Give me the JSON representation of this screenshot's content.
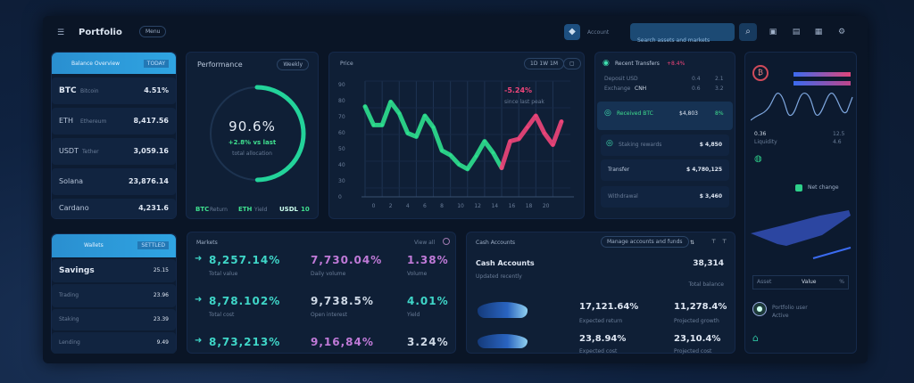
{
  "header": {
    "title": "Portfolio",
    "badge": "Menu",
    "user": "Account",
    "search_placeholder": "Search assets and markets",
    "icons": [
      "menu-icon",
      "logo-icon",
      "search-icon",
      "grid-icon",
      "wallet-icon",
      "bell-icon",
      "settings-icon"
    ]
  },
  "accounts": {
    "title": "Balance Overview",
    "tag": "TODAY",
    "rows": [
      {
        "label": "BTC",
        "sub": "Bitcoin",
        "value": "4.51%"
      },
      {
        "label": "ETH",
        "sub": "Ethereum",
        "value": "8,417.56"
      },
      {
        "label": "USDT",
        "sub": "Tether",
        "value": "3,059.16"
      },
      {
        "label": "Solana",
        "sub": "",
        "value": "23,876.14"
      },
      {
        "label": "Cardano",
        "sub": "",
        "value": "4,231.6"
      }
    ]
  },
  "gauge": {
    "title": "Performance",
    "button": "Weekly",
    "value": "90.6%",
    "fill": 0.906,
    "sub": "+2.8% vs last",
    "caption": "total allocation",
    "footer": [
      {
        "k": "BTC",
        "v": "Return"
      },
      {
        "k": "ETH",
        "v": "Yield"
      },
      {
        "k": "USDL",
        "v": "10"
      }
    ]
  },
  "chart": {
    "title": "Price",
    "button": "1D 1W 1M",
    "annotation": "-5.24%",
    "annotation_sub": "since last peak"
  },
  "chart_data": {
    "type": "line",
    "ylim": [
      0,
      100
    ],
    "yticks": [
      "90",
      "80",
      "70",
      "60",
      "50",
      "40",
      "30",
      "0"
    ],
    "xticks": [
      "0",
      "2",
      "4",
      "6",
      "8",
      "10",
      "12",
      "14",
      "16",
      "18",
      "20"
    ],
    "series": [
      {
        "color": "#2ee08f",
        "values": [
          [
            0,
            78
          ],
          [
            1,
            62
          ],
          [
            2,
            62
          ],
          [
            3,
            82
          ],
          [
            4,
            72
          ],
          [
            5,
            55
          ],
          [
            6,
            52
          ],
          [
            7,
            70
          ],
          [
            8,
            60
          ],
          [
            9,
            40
          ],
          [
            10,
            36
          ],
          [
            11,
            28
          ],
          [
            12,
            24
          ],
          [
            13,
            35
          ],
          [
            14,
            48
          ],
          [
            15,
            38
          ],
          [
            16,
            25
          ]
        ]
      },
      {
        "color": "#f0457a",
        "values": [
          [
            16,
            25
          ],
          [
            17,
            48
          ],
          [
            18,
            50
          ],
          [
            19,
            60
          ],
          [
            20,
            70
          ],
          [
            21,
            55
          ],
          [
            22,
            45
          ],
          [
            23,
            65
          ]
        ]
      }
    ]
  },
  "list": {
    "title": "Recent Transfers",
    "tag": "+8.4%",
    "table": {
      "rows": [
        [
          "Deposit USD",
          "0.4",
          "2.1"
        ],
        [
          "Exchange",
          "CNH",
          "0.6",
          "3.2"
        ]
      ]
    },
    "items": [
      {
        "label": "Received BTC",
        "value": "$4,803",
        "pct": "8%"
      },
      {
        "label": "Staking rewards",
        "value": "$ 4,850"
      },
      {
        "label": "Transfer",
        "value": "$ 4,780,125"
      },
      {
        "label": "Withdrawal",
        "value": "$ 3,460"
      }
    ]
  },
  "side": {
    "stats": [
      [
        "0.36",
        "12.5"
      ],
      [
        "Liquidity",
        "4.6"
      ]
    ],
    "legend": "Net change",
    "table": [
      "Asset",
      "Value",
      "%"
    ],
    "user": "Portfolio user",
    "user_sub": "Active"
  },
  "ledger": {
    "title": "Wallets",
    "tag": "SETTLED",
    "rows": [
      {
        "label": "Savings",
        "value": "25.15"
      },
      {
        "label": "Trading",
        "value": "23.96"
      },
      {
        "label": "Staking",
        "value": "23.39"
      },
      {
        "label": "Lending",
        "value": "9.49"
      }
    ]
  },
  "stats": {
    "title": "Markets",
    "link": "View all",
    "cells": [
      [
        "8,257.14%",
        "Total value",
        "7,730.04%",
        "Daily volume",
        "1.38%",
        "Volume"
      ],
      [
        "8,78.102%",
        "Total cost",
        "9,738.5%",
        "Open interest",
        "4.01%",
        "Yield"
      ],
      [
        "8,73,213%",
        "",
        "9,16,84%",
        "",
        "3.24%",
        ""
      ]
    ]
  },
  "assets": {
    "title": "Cash Accounts",
    "sub": "Updated recently",
    "button": "Manage accounts and funds",
    "value": "38,314",
    "note": "Total balance",
    "rows": [
      [
        "17,121.64%",
        "Expected return",
        "11,278.4%",
        "Projected growth"
      ],
      [
        "23,8.94%",
        "Expected cost",
        "23,10.4%",
        "Projected cost"
      ]
    ]
  }
}
